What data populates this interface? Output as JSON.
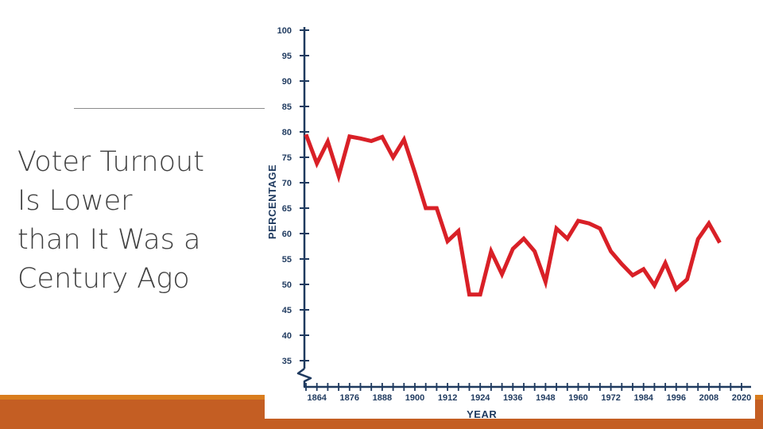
{
  "slide": {
    "title_lines": [
      "Voter Turnout",
      "Is Lower",
      "than It Was a",
      "Century Ago"
    ]
  },
  "colors": {
    "line": "#d92027",
    "axis": "#1f3a5f",
    "accent_bar": "#c45e23",
    "accent_bar_top": "#d97d1e",
    "title_text": "#404040"
  },
  "chart_data": {
    "type": "line",
    "xlabel": "YEAR",
    "ylabel": "PERCENTAGE",
    "xlim": [
      1860,
      2020
    ],
    "ylim": [
      35,
      100
    ],
    "x_ticks": [
      1864,
      1876,
      1888,
      1900,
      1912,
      1924,
      1936,
      1948,
      1960,
      1972,
      1984,
      1996,
      2008,
      2020
    ],
    "y_ticks": [
      35,
      40,
      45,
      50,
      55,
      60,
      65,
      70,
      75,
      80,
      85,
      90,
      95,
      100
    ],
    "axis_break": true,
    "grid": false,
    "x": [
      1860,
      1864,
      1868,
      1872,
      1876,
      1880,
      1884,
      1888,
      1892,
      1896,
      1900,
      1904,
      1908,
      1912,
      1916,
      1920,
      1924,
      1928,
      1932,
      1936,
      1940,
      1944,
      1948,
      1952,
      1956,
      1960,
      1964,
      1968,
      1972,
      1976,
      1980,
      1984,
      1988,
      1992,
      1996,
      2000,
      2004,
      2008,
      2012
    ],
    "y": [
      79.5,
      73.8,
      78.1,
      71.3,
      79.1,
      78.7,
      78.2,
      79.0,
      75.0,
      78.5,
      72.0,
      65.0,
      65.0,
      58.5,
      60.5,
      48.0,
      48.0,
      56.5,
      52.0,
      57.0,
      59.0,
      56.5,
      50.5,
      61.0,
      59.0,
      62.5,
      62.0,
      61.0,
      56.5,
      54.0,
      51.8,
      53.0,
      49.8,
      54.2,
      49.1,
      51.0,
      58.9,
      62.0,
      58.2
    ]
  }
}
